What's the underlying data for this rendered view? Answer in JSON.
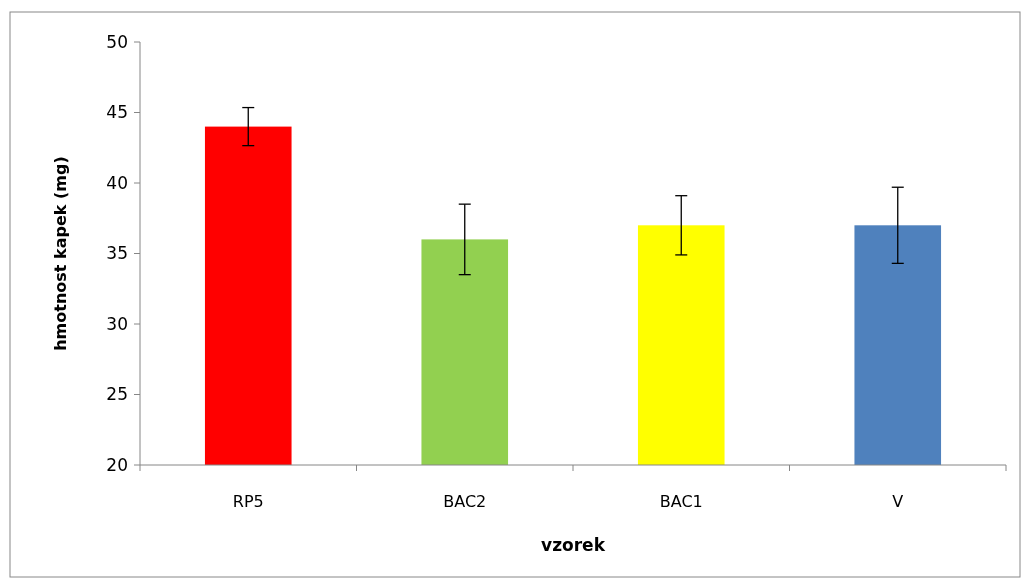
{
  "chart_data": {
    "type": "bar",
    "xlabel": "vzorek",
    "ylabel": "hmotnost kapek (mg)",
    "categories": [
      "RP5",
      "BAC2",
      "BAC1",
      "V"
    ],
    "values": [
      44.0,
      36.0,
      37.0,
      37.0
    ],
    "colors": [
      "#ff0000",
      "#92d050",
      "#ffff00",
      "#4f81bd"
    ],
    "errors": [
      1.35,
      2.5,
      2.1,
      2.7
    ],
    "ylim": [
      20,
      50
    ],
    "yticks": [
      20,
      25,
      30,
      35,
      40,
      45,
      50
    ],
    "grid": false
  }
}
